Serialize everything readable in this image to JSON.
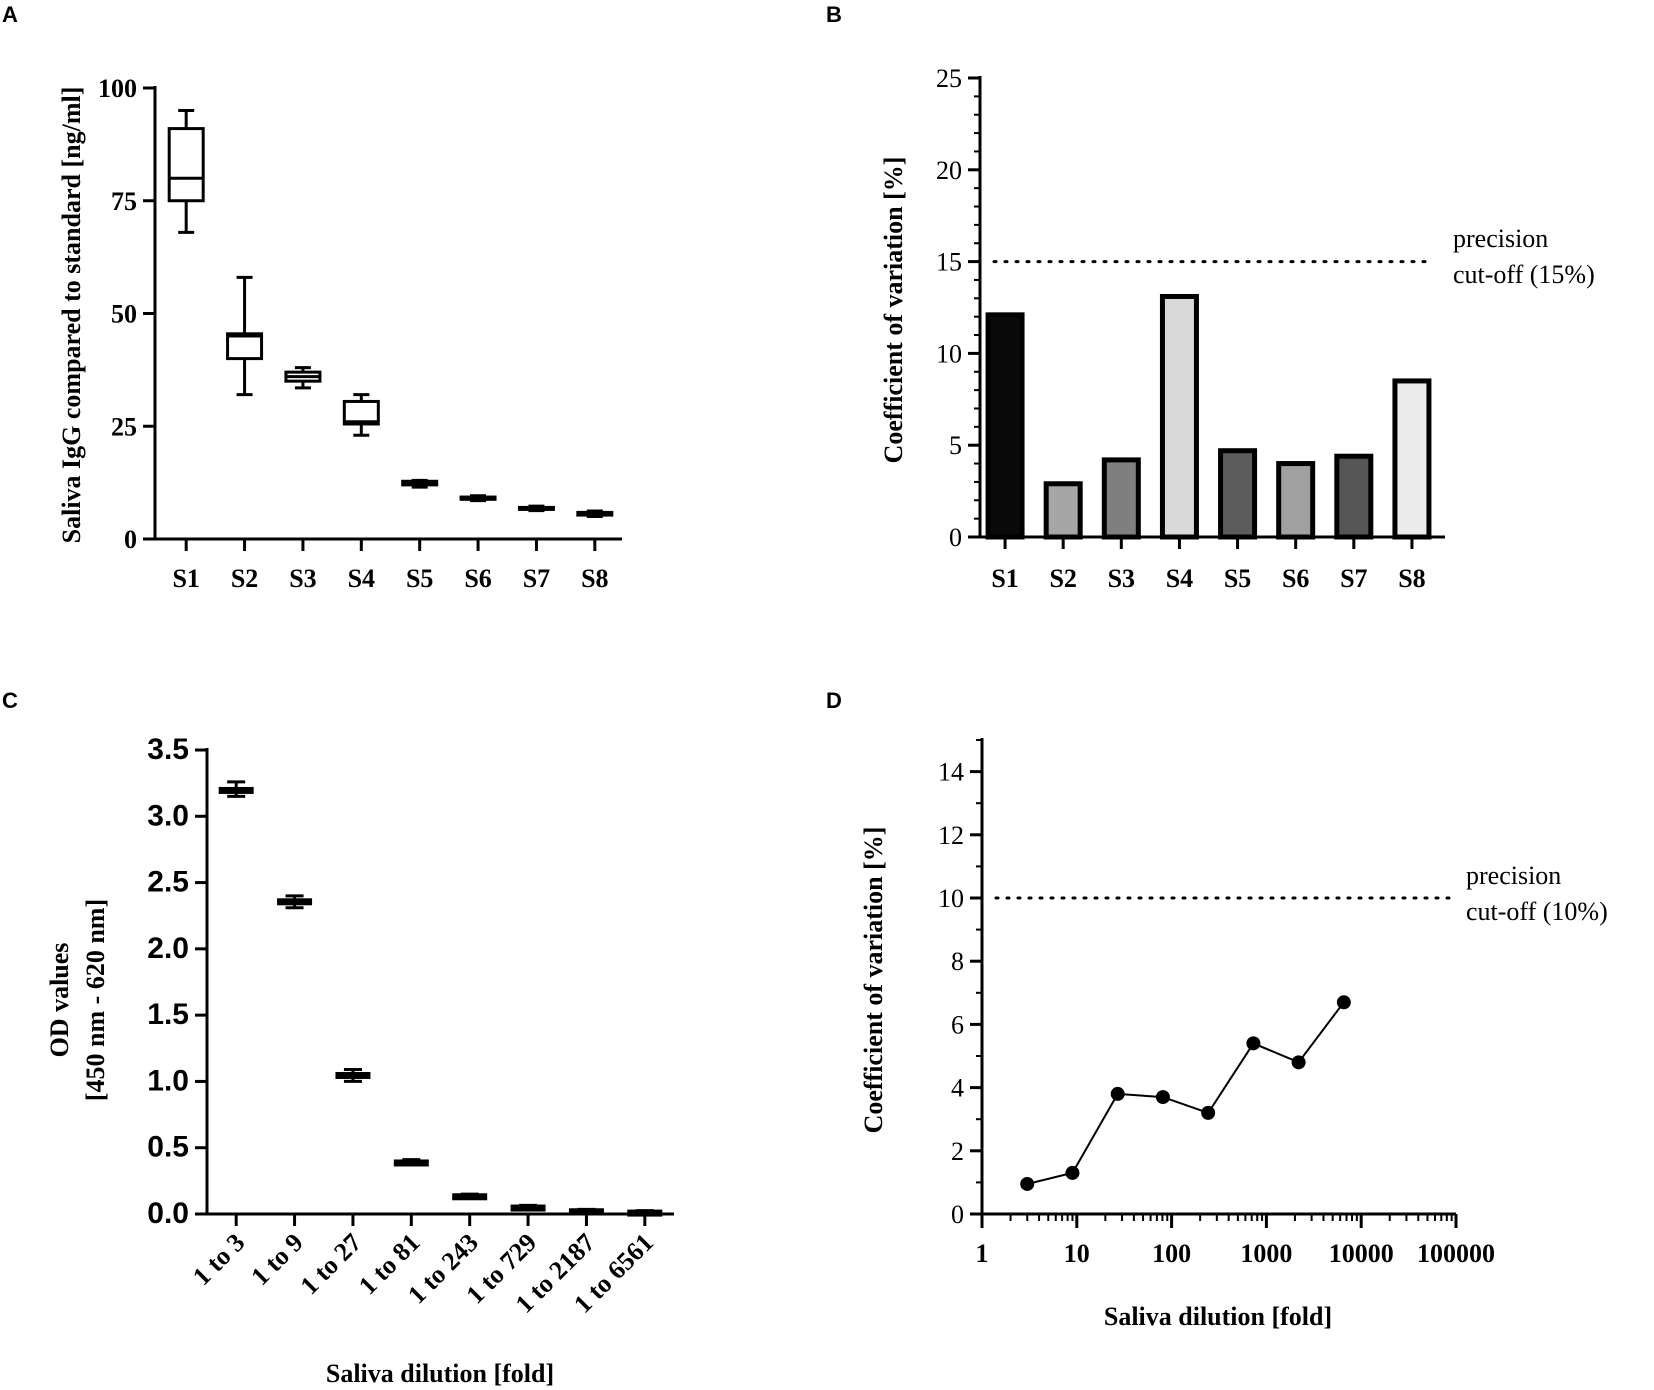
{
  "panels": {
    "A": "A",
    "B": "B",
    "C": "C",
    "D": "D"
  },
  "chart_data": [
    {
      "id": "A",
      "type": "box",
      "title": "",
      "xlabel": "",
      "ylabel": "Saliva IgG compared to standard [ng/ml]",
      "ylim": [
        0,
        100
      ],
      "yticks": [
        0,
        25,
        50,
        75,
        100
      ],
      "categories": [
        "S1",
        "S2",
        "S3",
        "S4",
        "S5",
        "S6",
        "S7",
        "S8"
      ],
      "boxes": [
        {
          "min": 68,
          "q1": 75,
          "median": 80,
          "q3": 91,
          "max": 95
        },
        {
          "min": 32,
          "q1": 40,
          "median": 45,
          "q3": 45.5,
          "max": 58
        },
        {
          "min": 33.5,
          "q1": 35,
          "median": 36,
          "q3": 37,
          "max": 38
        },
        {
          "min": 23,
          "q1": 25.5,
          "median": 26,
          "q3": 30.5,
          "max": 32
        },
        {
          "min": 11.5,
          "q1": 12,
          "median": 12.5,
          "q3": 12.8,
          "max": 13
        },
        {
          "min": 8.5,
          "q1": 8.8,
          "median": 9,
          "q3": 9.3,
          "max": 9.6
        },
        {
          "min": 6.3,
          "q1": 6.6,
          "median": 6.8,
          "q3": 7,
          "max": 7.3
        },
        {
          "min": 5,
          "q1": 5.3,
          "median": 5.6,
          "q3": 5.9,
          "max": 6.2
        }
      ]
    },
    {
      "id": "B",
      "type": "bar",
      "title": "",
      "xlabel": "",
      "ylabel": "Coefficient of variation [%]",
      "ylim": [
        0,
        25
      ],
      "yticks": [
        0,
        5,
        10,
        15,
        20,
        25
      ],
      "categories": [
        "S1",
        "S2",
        "S3",
        "S4",
        "S5",
        "S6",
        "S7",
        "S8"
      ],
      "values": [
        12.1,
        2.9,
        4.2,
        13.1,
        4.7,
        4.0,
        4.4,
        8.5
      ],
      "colors": [
        "#0a0a0a",
        "#a6a6a6",
        "#7f7f7f",
        "#d9d9d9",
        "#5c5c5c",
        "#a0a0a0",
        "#555555",
        "#ececec"
      ],
      "reference_line": {
        "value": 15,
        "label_line1": "precision",
        "label_line2": "cut-off (15%)"
      }
    },
    {
      "id": "C",
      "type": "box",
      "title": "",
      "xlabel": "Saliva dilution [fold]",
      "ylabel_line1": "OD values",
      "ylabel_line2": "[450 nm - 620 nm]",
      "ylim": [
        0,
        3.5
      ],
      "yticks": [
        "0.0",
        "0.5",
        "1.0",
        "1.5",
        "2.0",
        "2.5",
        "3.0",
        "3.5"
      ],
      "categories": [
        "1 to 3",
        "1 to 9",
        "1 to 27",
        "1 to 81",
        "1 to 243",
        "1 to 729",
        "1 to 2187",
        "1 to 6561"
      ],
      "boxes": [
        {
          "min": 3.15,
          "q1": 3.18,
          "median": 3.2,
          "q3": 3.21,
          "max": 3.26
        },
        {
          "min": 2.31,
          "q1": 2.34,
          "median": 2.36,
          "q3": 2.37,
          "max": 2.4
        },
        {
          "min": 1.0,
          "q1": 1.02,
          "median": 1.04,
          "q3": 1.06,
          "max": 1.09
        },
        {
          "min": 0.37,
          "q1": 0.38,
          "median": 0.39,
          "q3": 0.4,
          "max": 0.41
        },
        {
          "min": 0.13,
          "q1": 0.135,
          "median": 0.14,
          "q3": 0.145,
          "max": 0.15
        },
        {
          "min": 0.045,
          "q1": 0.05,
          "median": 0.055,
          "q3": 0.06,
          "max": 0.065
        },
        {
          "min": 0.025,
          "q1": 0.028,
          "median": 0.03,
          "q3": 0.032,
          "max": 0.035
        },
        {
          "min": 0.015,
          "q1": 0.017,
          "median": 0.02,
          "q3": 0.022,
          "max": 0.025
        }
      ]
    },
    {
      "id": "D",
      "type": "line",
      "title": "",
      "xlabel": "Saliva dilution [fold]",
      "ylabel": "Coefficient of variation [%]",
      "xscale": "log",
      "xlim": [
        1,
        100000
      ],
      "ylim": [
        0,
        15
      ],
      "xticks": [
        "1",
        "10",
        "100",
        "1000",
        "10000",
        "100000"
      ],
      "yticks": [
        0,
        2,
        4,
        6,
        8,
        10,
        12,
        14
      ],
      "x": [
        3,
        9,
        27,
        81,
        243,
        729,
        2187,
        6561
      ],
      "y": [
        0.95,
        1.3,
        3.8,
        3.7,
        3.2,
        5.4,
        4.8,
        6.7
      ],
      "reference_line": {
        "value": 10,
        "label_line1": "precision",
        "label_line2": "cut-off (10%)"
      }
    }
  ]
}
